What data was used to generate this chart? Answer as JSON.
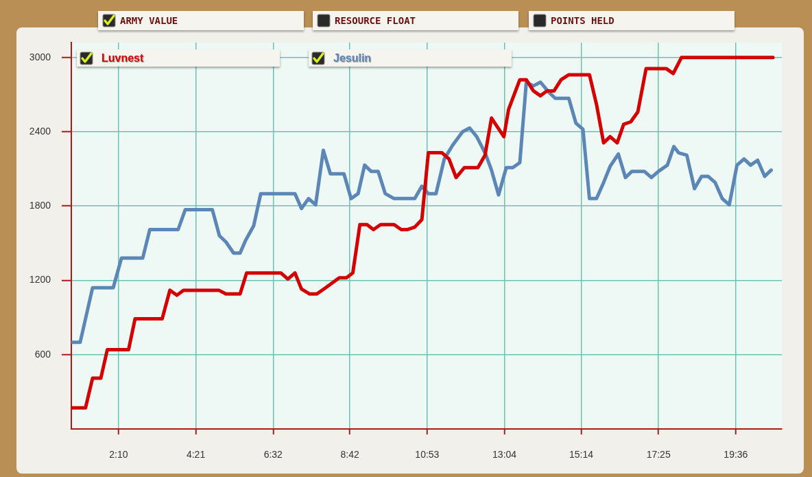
{
  "chart_data": {
    "type": "line",
    "title": "ARMY VALUE",
    "annotations": [
      "RESOURCE FLOAT",
      "POINTS HELD"
    ],
    "xlim": [
      50,
      1254
    ],
    "xticks": [
      {
        "value": 130,
        "label": "2:10"
      },
      {
        "value": 261,
        "label": "4:21"
      },
      {
        "value": 392,
        "label": "6:32"
      },
      {
        "value": 522,
        "label": "8:42"
      },
      {
        "value": 653,
        "label": "10:53"
      },
      {
        "value": 784,
        "label": "13:04"
      },
      {
        "value": 914,
        "label": "15:14"
      },
      {
        "value": 1045,
        "label": "17:25"
      },
      {
        "value": 1176,
        "label": "19:36"
      }
    ],
    "ylim": [
      0,
      3120
    ],
    "yticks": [
      600,
      1200,
      1800,
      2400,
      3000
    ],
    "grid": true,
    "legend": "top left",
    "line_style": "solid",
    "series": [
      {
        "name": "Luvnest",
        "color": "#d40000",
        "x": [
          51,
          74,
          86,
          100,
          111,
          147,
          158,
          204,
          217,
          229,
          240,
          300,
          312,
          336,
          347,
          405,
          417,
          429,
          440,
          454,
          466,
          481,
          504,
          516,
          527,
          539,
          551,
          562,
          574,
          597,
          609,
          620,
          632,
          644,
          655,
          678,
          690,
          702,
          716,
          739,
          751,
          762,
          783,
          791,
          810,
          821,
          833,
          845,
          856,
          868,
          880,
          893,
          928,
          940,
          952,
          963,
          975,
          986,
          998,
          1010,
          1024,
          1058,
          1070,
          1084,
          1239
        ],
        "values": [
          170,
          170,
          410,
          410,
          640,
          640,
          890,
          890,
          1120,
          1080,
          1120,
          1120,
          1090,
          1090,
          1260,
          1260,
          1210,
          1260,
          1130,
          1090,
          1090,
          1140,
          1220,
          1220,
          1260,
          1650,
          1650,
          1610,
          1650,
          1650,
          1610,
          1610,
          1630,
          1690,
          2230,
          2230,
          2180,
          2030,
          2110,
          2110,
          2210,
          2510,
          2360,
          2580,
          2820,
          2820,
          2730,
          2690,
          2730,
          2730,
          2820,
          2860,
          2860,
          2620,
          2310,
          2360,
          2310,
          2460,
          2480,
          2560,
          2910,
          2910,
          2870,
          3000,
          3000
        ]
      },
      {
        "name": "Jesulin",
        "color": "#5b86b5",
        "x": [
          51,
          65,
          86,
          121,
          135,
          171,
          183,
          231,
          243,
          289,
          301,
          312,
          325,
          336,
          345,
          359,
          371,
          429,
          440,
          452,
          464,
          477,
          489,
          512,
          524,
          536,
          547,
          558,
          570,
          582,
          597,
          632,
          644,
          655,
          668,
          682,
          696,
          713,
          725,
          737,
          752,
          762,
          774,
          787,
          798,
          810,
          821,
          833,
          845,
          859,
          870,
          893,
          905,
          917,
          928,
          940,
          952,
          963,
          977,
          989,
          1000,
          1021,
          1033,
          1045,
          1060,
          1071,
          1079,
          1093,
          1106,
          1118,
          1129,
          1141,
          1153,
          1165,
          1178,
          1190,
          1201,
          1213,
          1225,
          1236
        ],
        "values": [
          700,
          700,
          1140,
          1140,
          1380,
          1380,
          1610,
          1610,
          1770,
          1770,
          1560,
          1510,
          1420,
          1420,
          1520,
          1640,
          1900,
          1900,
          1780,
          1860,
          1810,
          2250,
          2060,
          2060,
          1860,
          1900,
          2130,
          2080,
          2080,
          1900,
          1860,
          1860,
          1960,
          1900,
          1900,
          2180,
          2290,
          2400,
          2430,
          2360,
          2220,
          2090,
          1890,
          2110,
          2110,
          2150,
          2800,
          2770,
          2800,
          2720,
          2670,
          2670,
          2470,
          2420,
          1860,
          1860,
          1990,
          2120,
          2220,
          2030,
          2080,
          2080,
          2030,
          2080,
          2130,
          2280,
          2230,
          2210,
          1940,
          2040,
          2040,
          1990,
          1860,
          1810,
          2130,
          2180,
          2130,
          2170,
          2040,
          2090
        ]
      }
    ]
  }
}
